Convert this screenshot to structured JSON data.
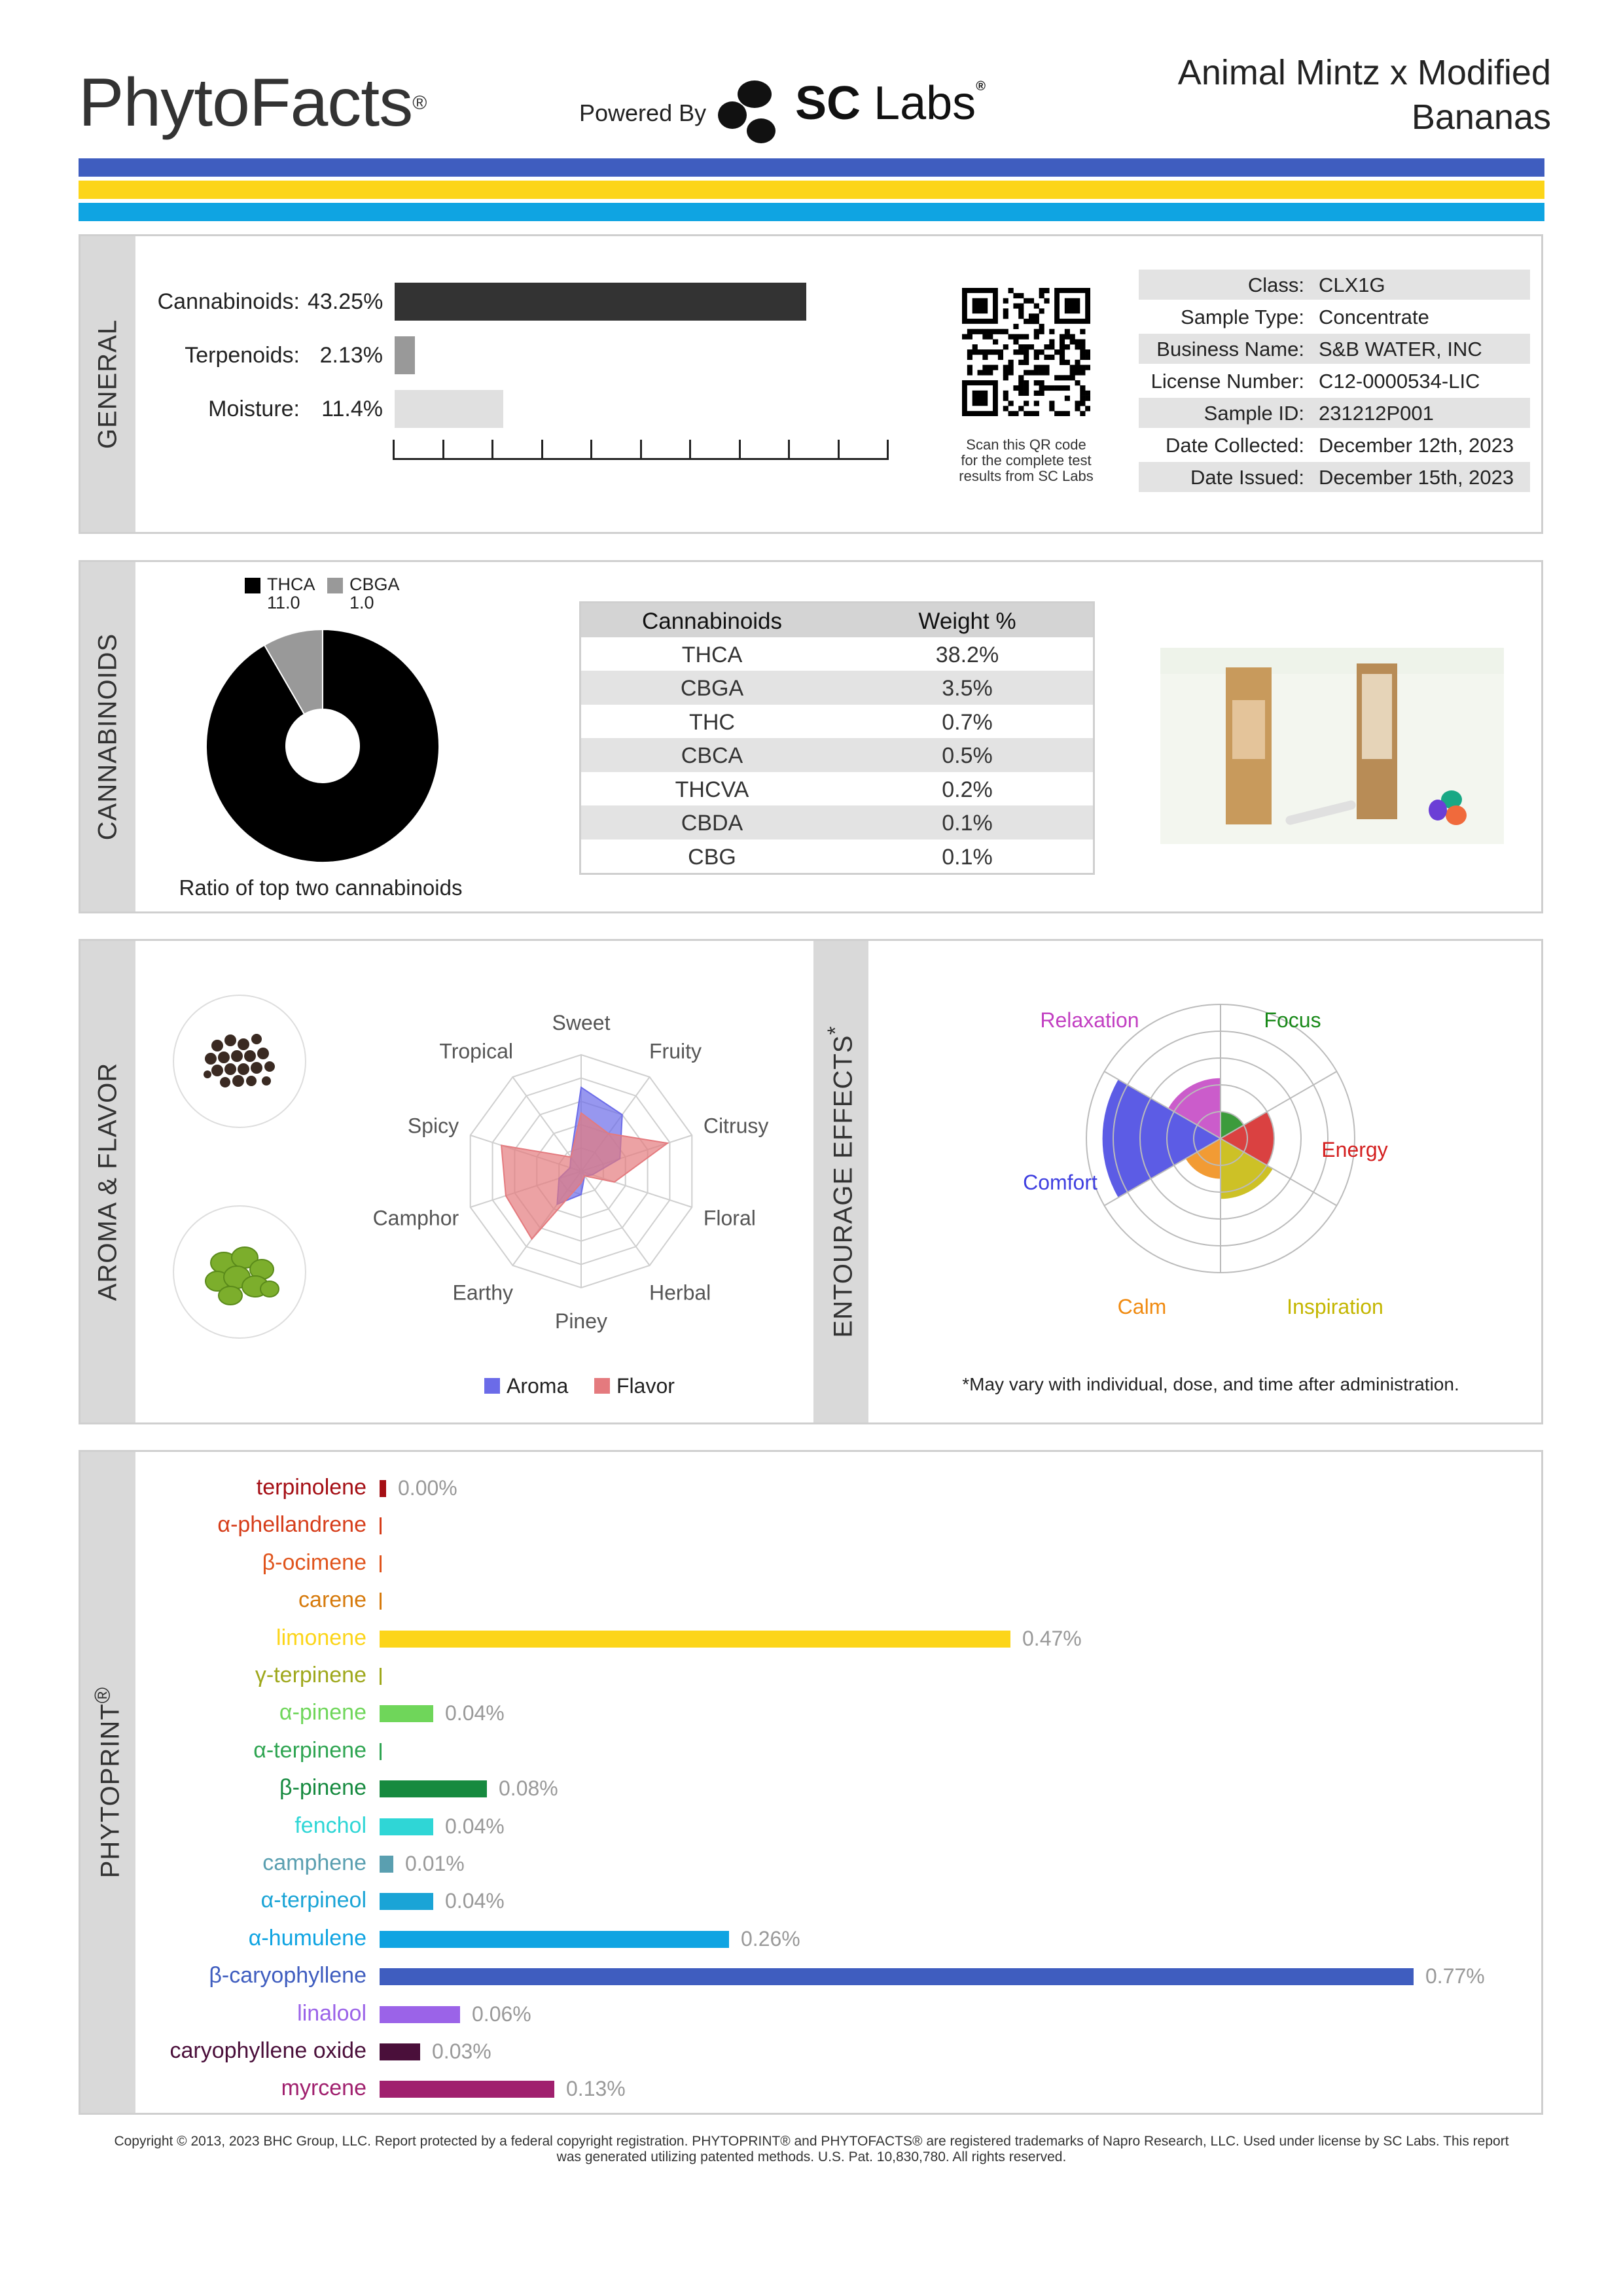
{
  "header": {
    "logo": "PhytoFacts",
    "logo_mark": "®",
    "powered_by": "Powered By",
    "sc_labs_bold": "SC",
    "sc_labs_light": "Labs",
    "sc_labs_mark": "®",
    "title_line1": "Animal Mintz x Modified",
    "title_line2": "Bananas",
    "stripe_colors": [
      "#3f5dbf",
      "#fcd519",
      "#0fa4e2"
    ]
  },
  "general": {
    "tab": "GENERAL",
    "bars": [
      {
        "label": "Cannabinoids:",
        "value": "43.25%",
        "percent": 43.25,
        "color": "#333333"
      },
      {
        "label": "Terpenoids:",
        "value": "2.13%",
        "percent": 2.13,
        "color": "#999999"
      },
      {
        "label": "Moisture:",
        "value": "11.4%",
        "percent": 11.4,
        "color": "#e0e0e0"
      }
    ],
    "qr_caption": [
      "Scan this QR code",
      "for the complete test",
      "results from SC Labs"
    ],
    "info": [
      {
        "key": "Class:",
        "value": "CLX1G"
      },
      {
        "key": "Sample Type:",
        "value": "Concentrate"
      },
      {
        "key": "Business Name:",
        "value": "S&B WATER, INC"
      },
      {
        "key": "License Number:",
        "value": "C12-0000534-LIC"
      },
      {
        "key": "Sample ID:",
        "value": "231212P001"
      },
      {
        "key": "Date Collected:",
        "value": "December 12th, 2023"
      },
      {
        "key": "Date Issued:",
        "value": "December 15th, 2023"
      }
    ]
  },
  "cannabinoids": {
    "tab": "CANNABINOIDS",
    "donut_caption": "Ratio of top two cannabinoids",
    "legend": [
      {
        "name": "THCA",
        "value": "11.0",
        "color": "#000000"
      },
      {
        "name": "CBGA",
        "value": "1.0",
        "color": "#999999"
      }
    ],
    "table_headers": [
      "Cannabinoids",
      "Weight %"
    ],
    "table": [
      [
        "THCA",
        "38.2%"
      ],
      [
        "CBGA",
        "3.5%"
      ],
      [
        "THC",
        "0.7%"
      ],
      [
        "CBCA",
        "0.5%"
      ],
      [
        "THCVA",
        "0.2%"
      ],
      [
        "CBDA",
        "0.1%"
      ],
      [
        "CBG",
        "0.1%"
      ]
    ]
  },
  "aroma": {
    "tab": "AROMA & FLAVOR",
    "labels": [
      "Sweet",
      "Fruity",
      "Citrusy",
      "Floral",
      "Herbal",
      "Piney",
      "Earthy",
      "Camphor",
      "Spicy",
      "Tropical"
    ],
    "aroma_values": [
      0.72,
      0.6,
      0.35,
      0.1,
      0.05,
      0.2,
      0.35,
      0.2,
      0.1,
      0.15
    ],
    "flavor_values": [
      0.5,
      0.4,
      0.78,
      0.3,
      0.05,
      0.1,
      0.72,
      0.68,
      0.72,
      0.15
    ],
    "legend": [
      {
        "name": "Aroma",
        "color": "#6b6be8"
      },
      {
        "name": "Flavor",
        "color": "#e47a7e"
      }
    ]
  },
  "entourage": {
    "tab": "ENTOURAGE EFFECTS",
    "tab_mark": "*",
    "labels": [
      {
        "name": "Relaxation",
        "color": "#c23fc2"
      },
      {
        "name": "Focus",
        "color": "#1a8a1a"
      },
      {
        "name": "Energy",
        "color": "#d42020"
      },
      {
        "name": "Inspiration",
        "color": "#c4b600"
      },
      {
        "name": "Calm",
        "color": "#f08a10"
      },
      {
        "name": "Comfort",
        "color": "#3f3fe0"
      }
    ],
    "values": [
      0.45,
      0.2,
      0.4,
      0.45,
      0.3,
      0.88
    ],
    "note": "*May vary with individual, dose, and time after administration."
  },
  "phytoprint": {
    "tab": "PHYTOPRINT",
    "tab_mark": "®",
    "max_value": 0.77,
    "terpenes": [
      {
        "name": "terpinolene",
        "value": "0.00%",
        "amount": 0.0,
        "color": "#a50f15",
        "min_bar": 10
      },
      {
        "name": "α-phellandrene",
        "value": "",
        "amount": 0,
        "color": "#d63d1a",
        "min_bar": 3
      },
      {
        "name": "β-ocimene",
        "value": "",
        "amount": 0,
        "color": "#e0541c",
        "min_bar": 3
      },
      {
        "name": "carene",
        "value": "",
        "amount": 0,
        "color": "#d67a0c",
        "min_bar": 3
      },
      {
        "name": "limonene",
        "value": "0.47%",
        "amount": 0.47,
        "color": "#fcd519",
        "min_bar": 0
      },
      {
        "name": "γ-terpinene",
        "value": "",
        "amount": 0,
        "color": "#9fa81c",
        "min_bar": 3
      },
      {
        "name": "α-pinene",
        "value": "0.04%",
        "amount": 0.04,
        "color": "#6fd65a",
        "min_bar": 0
      },
      {
        "name": "α-terpinene",
        "value": "",
        "amount": 0,
        "color": "#2fa552",
        "min_bar": 3
      },
      {
        "name": "β-pinene",
        "value": "0.08%",
        "amount": 0.08,
        "color": "#168a3f",
        "min_bar": 0
      },
      {
        "name": "fenchol",
        "value": "0.04%",
        "amount": 0.04,
        "color": "#2fd6d6",
        "min_bar": 0
      },
      {
        "name": "camphene",
        "value": "0.01%",
        "amount": 0.01,
        "color": "#5a9fb0",
        "min_bar": 0
      },
      {
        "name": "α-terpineol",
        "value": "0.04%",
        "amount": 0.04,
        "color": "#1aa4d6",
        "min_bar": 0
      },
      {
        "name": "α-humulene",
        "value": "0.26%",
        "amount": 0.26,
        "color": "#0fa4e2",
        "min_bar": 0
      },
      {
        "name": "β-caryophyllene",
        "value": "0.77%",
        "amount": 0.77,
        "color": "#3f5dbf",
        "min_bar": 0
      },
      {
        "name": "linalool",
        "value": "0.06%",
        "amount": 0.06,
        "color": "#9b63e8",
        "min_bar": 0
      },
      {
        "name": "caryophyllene oxide",
        "value": "0.03%",
        "amount": 0.03,
        "color": "#4a0f3a",
        "min_bar": 0
      },
      {
        "name": "myrcene",
        "value": "0.13%",
        "amount": 0.13,
        "color": "#a0206e",
        "min_bar": 0
      }
    ]
  },
  "copyright": [
    "Copyright © 2013, 2023 BHC Group, LLC. Report protected by a federal copyright registration. PHYTOPRINT® and PHYTOFACTS® are registered trademarks of Napro Research, LLC. Used under license by SC Labs. This report",
    "was generated utilizing patented methods. U.S. Pat. 10,830,780. All rights reserved."
  ]
}
